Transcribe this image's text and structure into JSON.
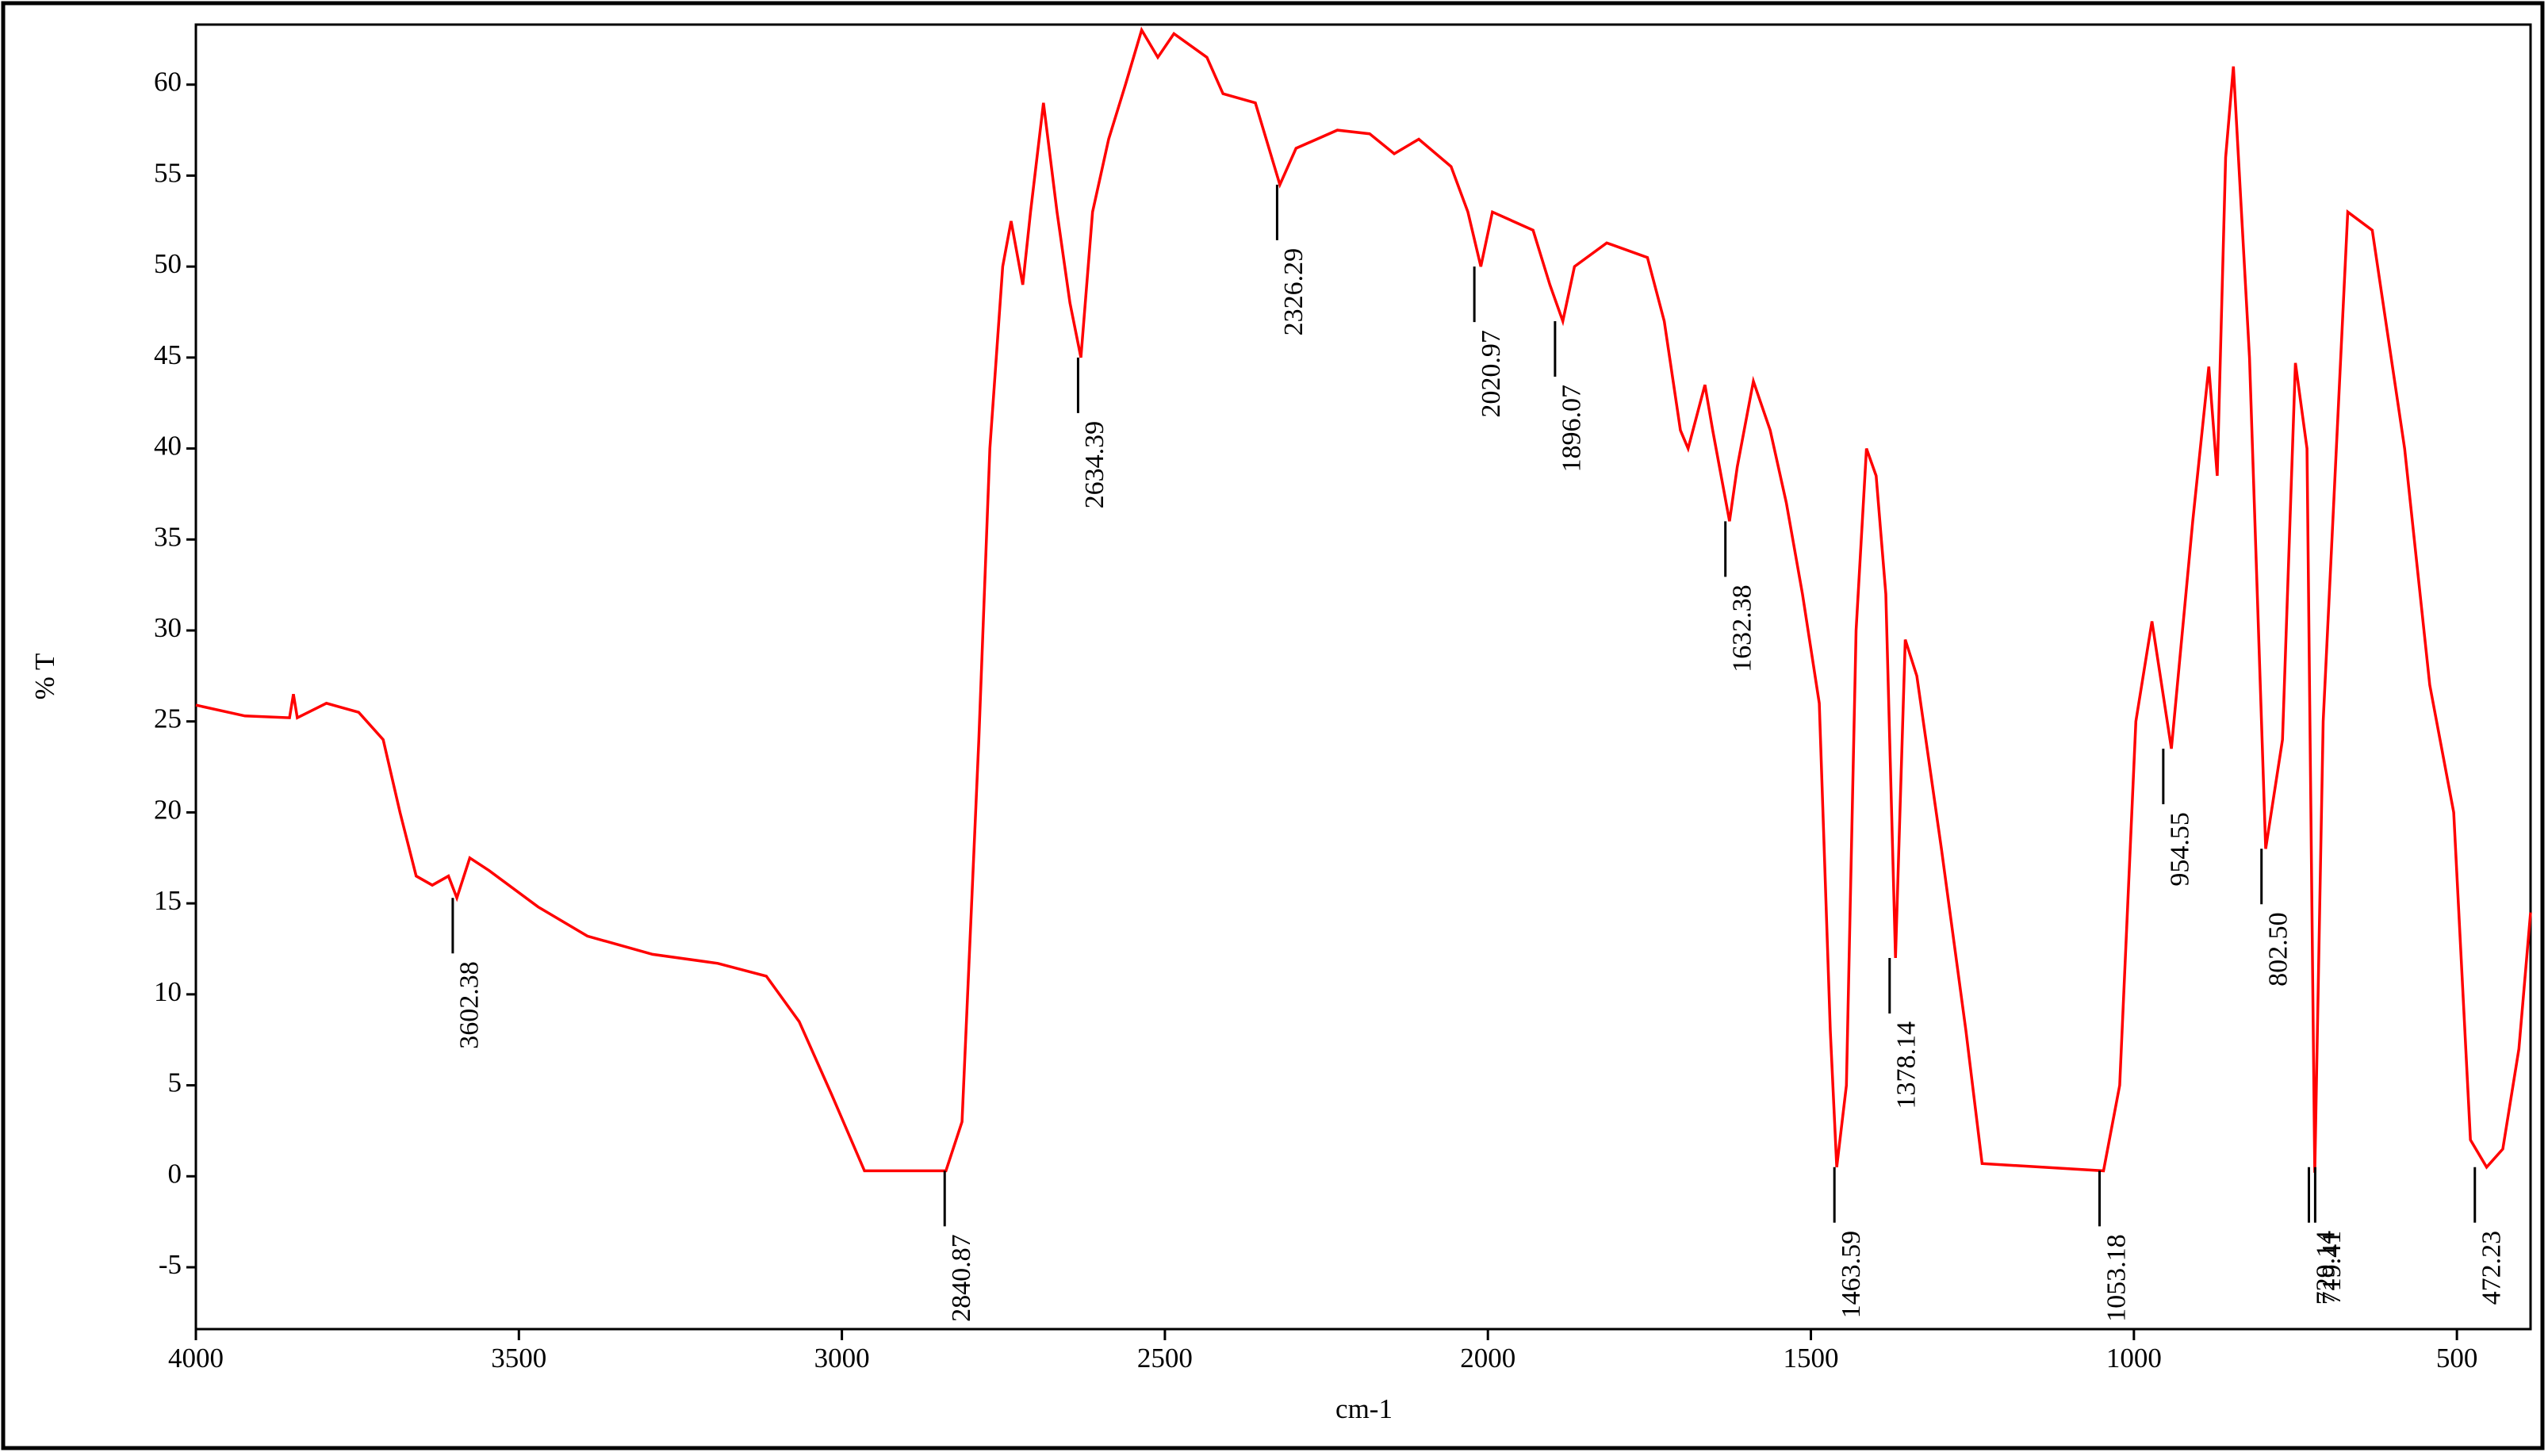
{
  "chart_data": {
    "type": "line",
    "ylabel": "% T",
    "xlabel": "cm-1",
    "color": "#ff0000",
    "xlim": [
      4000,
      386
    ],
    "ylim": [
      -8.4,
      63.3
    ],
    "xticks": [
      4000,
      3500,
      3000,
      2500,
      2000,
      1500,
      1000,
      500
    ],
    "yticks": [
      -5,
      0,
      5,
      10,
      15,
      20,
      25,
      30,
      35,
      40,
      45,
      50,
      55,
      60
    ],
    "x": [
      4000,
      3924,
      3855,
      3849,
      3843,
      3798,
      3748,
      3710,
      3684,
      3659,
      3634,
      3609,
      3596,
      3576,
      3546,
      3470,
      3394,
      3293,
      3192,
      3117,
      3066,
      3016,
      2965,
      2839,
      2814,
      2788,
      2771,
      2751,
      2738,
      2720,
      2708,
      2688,
      2667,
      2647,
      2630,
      2612,
      2587,
      2561,
      2536,
      2511,
      2486,
      2435,
      2410,
      2360,
      2322,
      2297,
      2233,
      2183,
      2145,
      2107,
      2057,
      2031,
      2011,
      1993,
      1930,
      1904,
      1884,
      1866,
      1816,
      1753,
      1727,
      1702,
      1690,
      1664,
      1652,
      1626,
      1614,
      1589,
      1563,
      1538,
      1513,
      1487,
      1470,
      1460,
      1445,
      1430,
      1414,
      1399,
      1384,
      1369,
      1354,
      1336,
      1298,
      1260,
      1235,
      1047,
      1022,
      997,
      972,
      942,
      909,
      884,
      871,
      858,
      846,
      821,
      796,
      770,
      750,
      732,
      720,
      707,
      669,
      631,
      581,
      542,
      505,
      479,
      454,
      429,
      404,
      386
    ],
    "values": [
      25.9,
      25.3,
      25.2,
      26.5,
      25.2,
      26,
      25.5,
      24,
      20,
      16.5,
      16,
      16.5,
      15.3,
      17.5,
      16.8,
      14.8,
      13.2,
      12.2,
      11.7,
      11,
      8.5,
      4.5,
      0.3,
      0.3,
      3,
      24,
      40,
      50,
      52.5,
      49,
      53,
      59,
      53,
      48,
      45,
      53,
      57,
      60,
      63,
      61.5,
      62.8,
      61.5,
      59.5,
      59,
      54.5,
      56.5,
      57.5,
      57.3,
      56.2,
      57,
      55.5,
      53,
      50,
      53,
      52,
      49,
      47,
      50,
      51.3,
      50.5,
      47,
      41,
      40,
      43.5,
      41,
      36,
      39,
      43.7,
      41,
      37,
      32,
      26,
      8,
      0.5,
      5,
      30,
      40,
      38.5,
      32,
      12,
      29.5,
      27.5,
      18,
      8,
      0.7,
      0.3,
      5,
      25,
      30.5,
      23.5,
      36,
      44.5,
      38.5,
      56,
      61,
      45,
      18,
      24,
      44.7,
      40,
      0.2,
      25,
      53,
      52,
      40,
      27,
      20,
      2,
      0.5,
      1.5,
      7,
      14.5
    ],
    "annotations": [
      {
        "x": 3602.38,
        "y": 15.3,
        "text": "3602.38"
      },
      {
        "x": 2840.87,
        "y": 0.3,
        "text": "2840.87"
      },
      {
        "x": 2634.39,
        "y": 45,
        "text": "2634.39"
      },
      {
        "x": 2326.29,
        "y": 54.5,
        "text": "2326.29"
      },
      {
        "x": 2020.97,
        "y": 50,
        "text": "2020.97"
      },
      {
        "x": 1896.07,
        "y": 47,
        "text": "1896.07"
      },
      {
        "x": 1632.38,
        "y": 36,
        "text": "1632.38"
      },
      {
        "x": 1463.59,
        "y": 0.5,
        "text": "1463.59"
      },
      {
        "x": 1378.14,
        "y": 12,
        "text": "1378.14"
      },
      {
        "x": 1053.18,
        "y": 0.3,
        "text": "1053.18"
      },
      {
        "x": 954.55,
        "y": 23.5,
        "text": "954.55"
      },
      {
        "x": 802.5,
        "y": 18,
        "text": "802.50"
      },
      {
        "x": 729.14,
        "y": 0.5,
        "text": "729.14"
      },
      {
        "x": 719.41,
        "y": 0.5,
        "text": "719.41"
      },
      {
        "x": 472.23,
        "y": 0.5,
        "text": "472.23"
      }
    ]
  }
}
